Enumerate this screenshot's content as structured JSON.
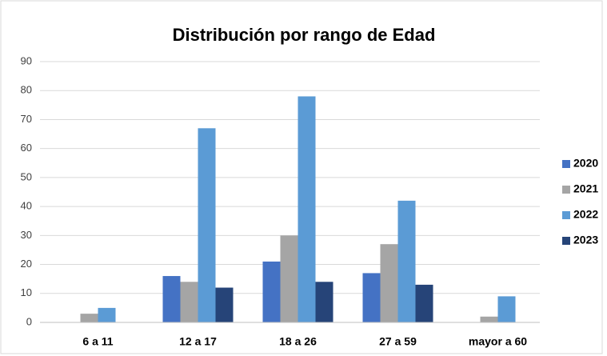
{
  "chart_data": {
    "type": "bar",
    "title": "Distribución por rango de Edad",
    "categories": [
      "6 a 11",
      "12 a 17",
      "18 a 26",
      "27 a 59",
      "mayor a 60"
    ],
    "series": [
      {
        "name": "2020",
        "color": "#4472c4",
        "values": [
          0,
          16,
          21,
          17,
          0
        ]
      },
      {
        "name": "2021",
        "color": "#a5a5a5",
        "values": [
          3,
          14,
          30,
          27,
          2
        ]
      },
      {
        "name": "2022",
        "color": "#5b9bd5",
        "values": [
          5,
          67,
          78,
          42,
          9
        ]
      },
      {
        "name": "2023",
        "color": "#264478",
        "values": [
          0,
          12,
          14,
          13,
          0
        ]
      }
    ],
    "ylim": [
      0,
      90
    ],
    "yticks": [
      0,
      10,
      20,
      30,
      40,
      50,
      60,
      70,
      80,
      90
    ],
    "grid": true,
    "legend": "right"
  }
}
